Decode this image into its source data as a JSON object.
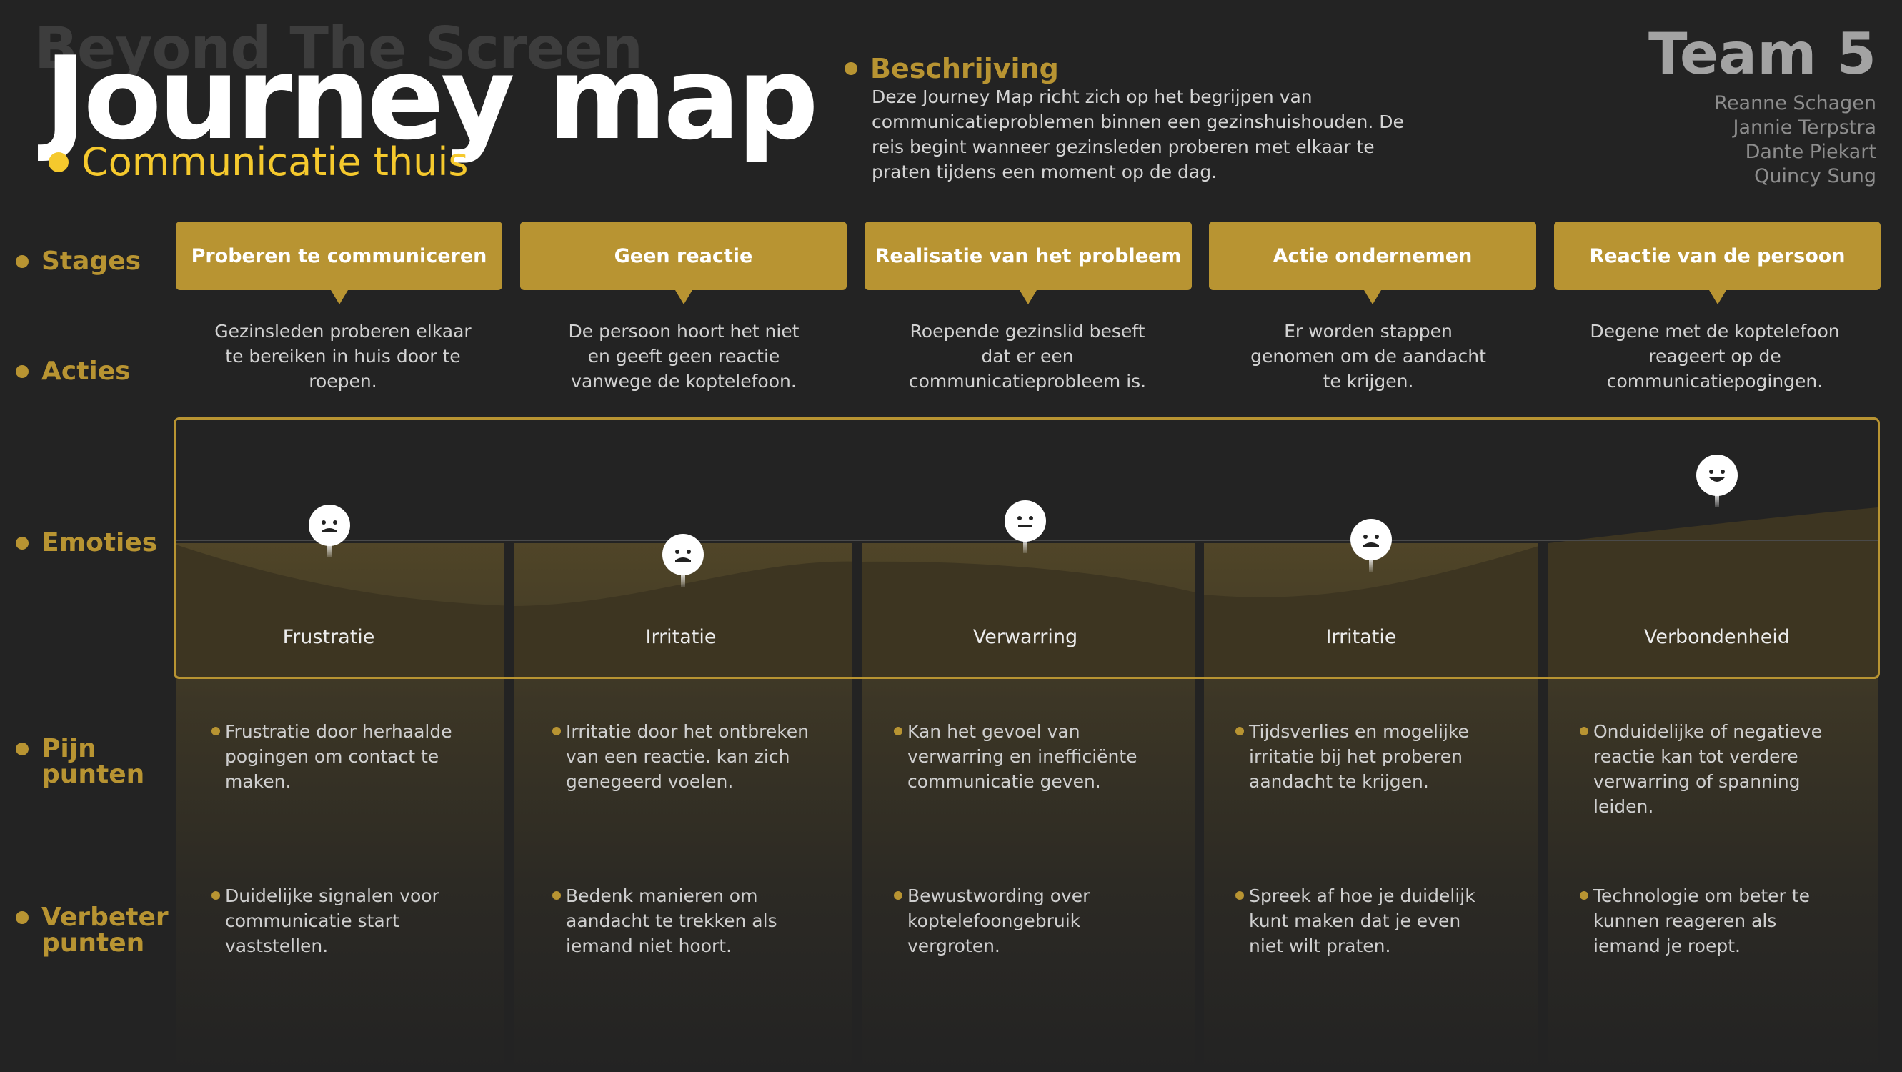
{
  "header": {
    "brand": "Beyond The Screen",
    "title": "Journey map",
    "subtitle": "Communicatie thuis"
  },
  "description": {
    "heading": "Beschrijving",
    "text": "Deze Journey Map richt zich op het begrijpen van communicatieproblemen binnen een gezinshuishouden. De reis begint wanneer gezinsleden proberen met elkaar te praten tijdens een moment op de dag."
  },
  "team": {
    "title": "Team 5",
    "members": [
      "Reanne  Schagen",
      "Jannie Terpstra",
      "Dante Piekart",
      "Quincy Sung"
    ]
  },
  "row_labels": {
    "stages": "Stages",
    "acties": "Acties",
    "emoties": "Emoties",
    "pijn_1": "Pijn",
    "pijn_2": "punten",
    "verbeter_1": "Verbeter",
    "verbeter_2": "punten"
  },
  "stages": [
    {
      "title": "Proberen te communiceren",
      "action": "Gezinsleden proberen elkaar te bereiken in huis door te roepen.",
      "emotion": "Frustratie",
      "emotion_icon": "sad-face-icon",
      "pain": "Frustratie door herhaalde pogingen om contact te maken.",
      "improvement": "Duidelijke signalen voor communicatie start vaststellen."
    },
    {
      "title": "Geen reactie",
      "action": "De persoon hoort het niet en geeft geen reactie vanwege de koptelefoon.",
      "emotion": "Irritatie",
      "emotion_icon": "sad-face-icon",
      "pain": "Irritatie door het ontbreken van een reactie. kan zich genegeerd voelen.",
      "improvement": "Bedenk manieren om aandacht te trekken als iemand niet hoort."
    },
    {
      "title": "Realisatie van het probleem",
      "action": "Roepende gezinslid beseft dat er een communicatieprobleem is.",
      "emotion": "Verwarring",
      "emotion_icon": "neutral-face-icon",
      "pain": "Kan het gevoel van verwarring en inefficiënte communicatie geven.",
      "improvement": "Bewustwording over koptelefoongebruik vergroten."
    },
    {
      "title": "Actie ondernemen",
      "action": "Er worden stappen genomen om de aandacht te krijgen.",
      "emotion": "Irritatie",
      "emotion_icon": "sad-face-icon",
      "pain": "Tijdsverlies en mogelijke irritatie bij het proberen aandacht te krijgen.",
      "improvement": "Spreek af hoe je duidelijk kunt maken dat je even niet wilt praten."
    },
    {
      "title": "Reactie van de persoon",
      "action": "Degene met de koptelefoon reageert op de communicatiepogingen.",
      "emotion": "Verbondenheid",
      "emotion_icon": "happy-face-icon",
      "pain": "Onduidelijke of negatieve reactie kan tot verdere verwarring of spanning leiden.",
      "improvement": "Technologie om beter te kunnen reageren als iemand je roept."
    }
  ],
  "colors": {
    "background": "#232323",
    "accent": "#b89432",
    "subtitle": "#f5c92d"
  }
}
